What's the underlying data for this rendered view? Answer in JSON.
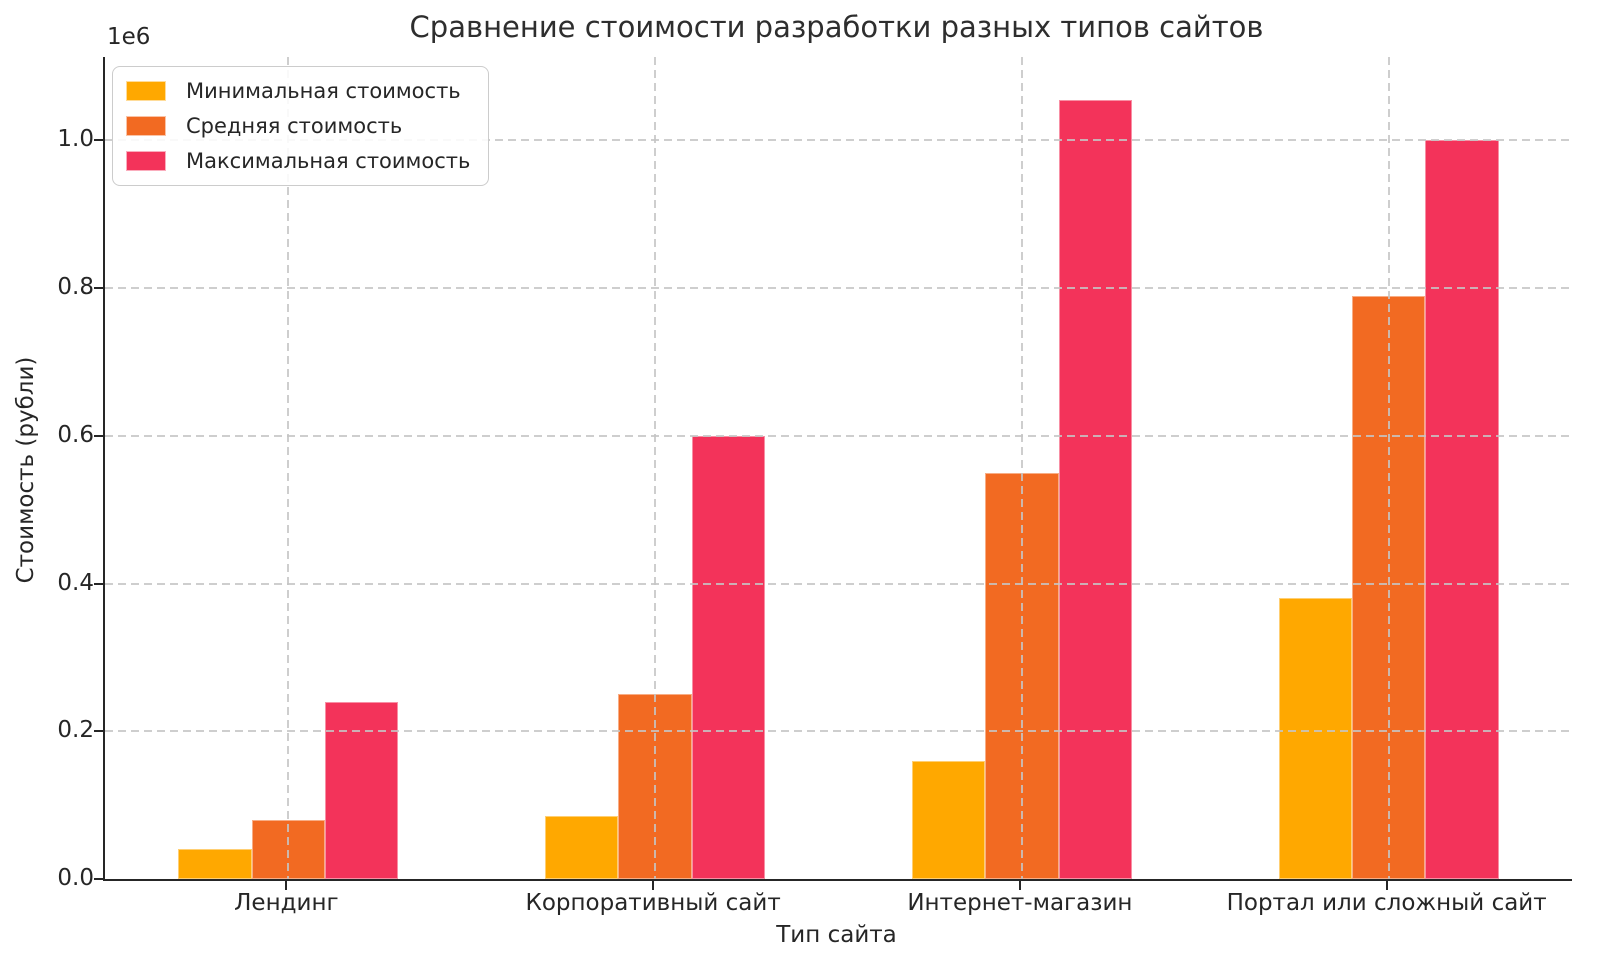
{
  "chart_data": {
    "type": "bar",
    "title": "Сравнение стоимости разработки разных типов сайтов",
    "xlabel": "Тип сайта",
    "ylabel": "Стоимость (рубли)",
    "y_offset_label": "1e6",
    "categories": [
      "Лендинг",
      "Корпоративный сайт",
      "Интернет-магазин",
      "Портал или сложный сайт"
    ],
    "series": [
      {
        "name": "Минимальная стоимость",
        "color": "#FFA800",
        "values": [
          40000,
          85000,
          160000,
          380000
        ]
      },
      {
        "name": "Средняя стоимость",
        "color": "#F26A22",
        "values": [
          80000,
          250000,
          550000,
          790000
        ]
      },
      {
        "name": "Максимальная стоимость",
        "color": "#F3335A",
        "values": [
          240000,
          600000,
          1055000,
          1000000
        ]
      }
    ],
    "ylim": [
      0,
      1113000
    ],
    "yticks": [
      0,
      200000,
      400000,
      600000,
      800000,
      1000000
    ],
    "ytick_labels": [
      "0.0",
      "0.2",
      "0.4",
      "0.6",
      "0.8",
      "1.0"
    ],
    "grid": true,
    "grid_style": "dashed",
    "legend_position": "upper-left",
    "bar_group_width_fraction": 0.6
  }
}
